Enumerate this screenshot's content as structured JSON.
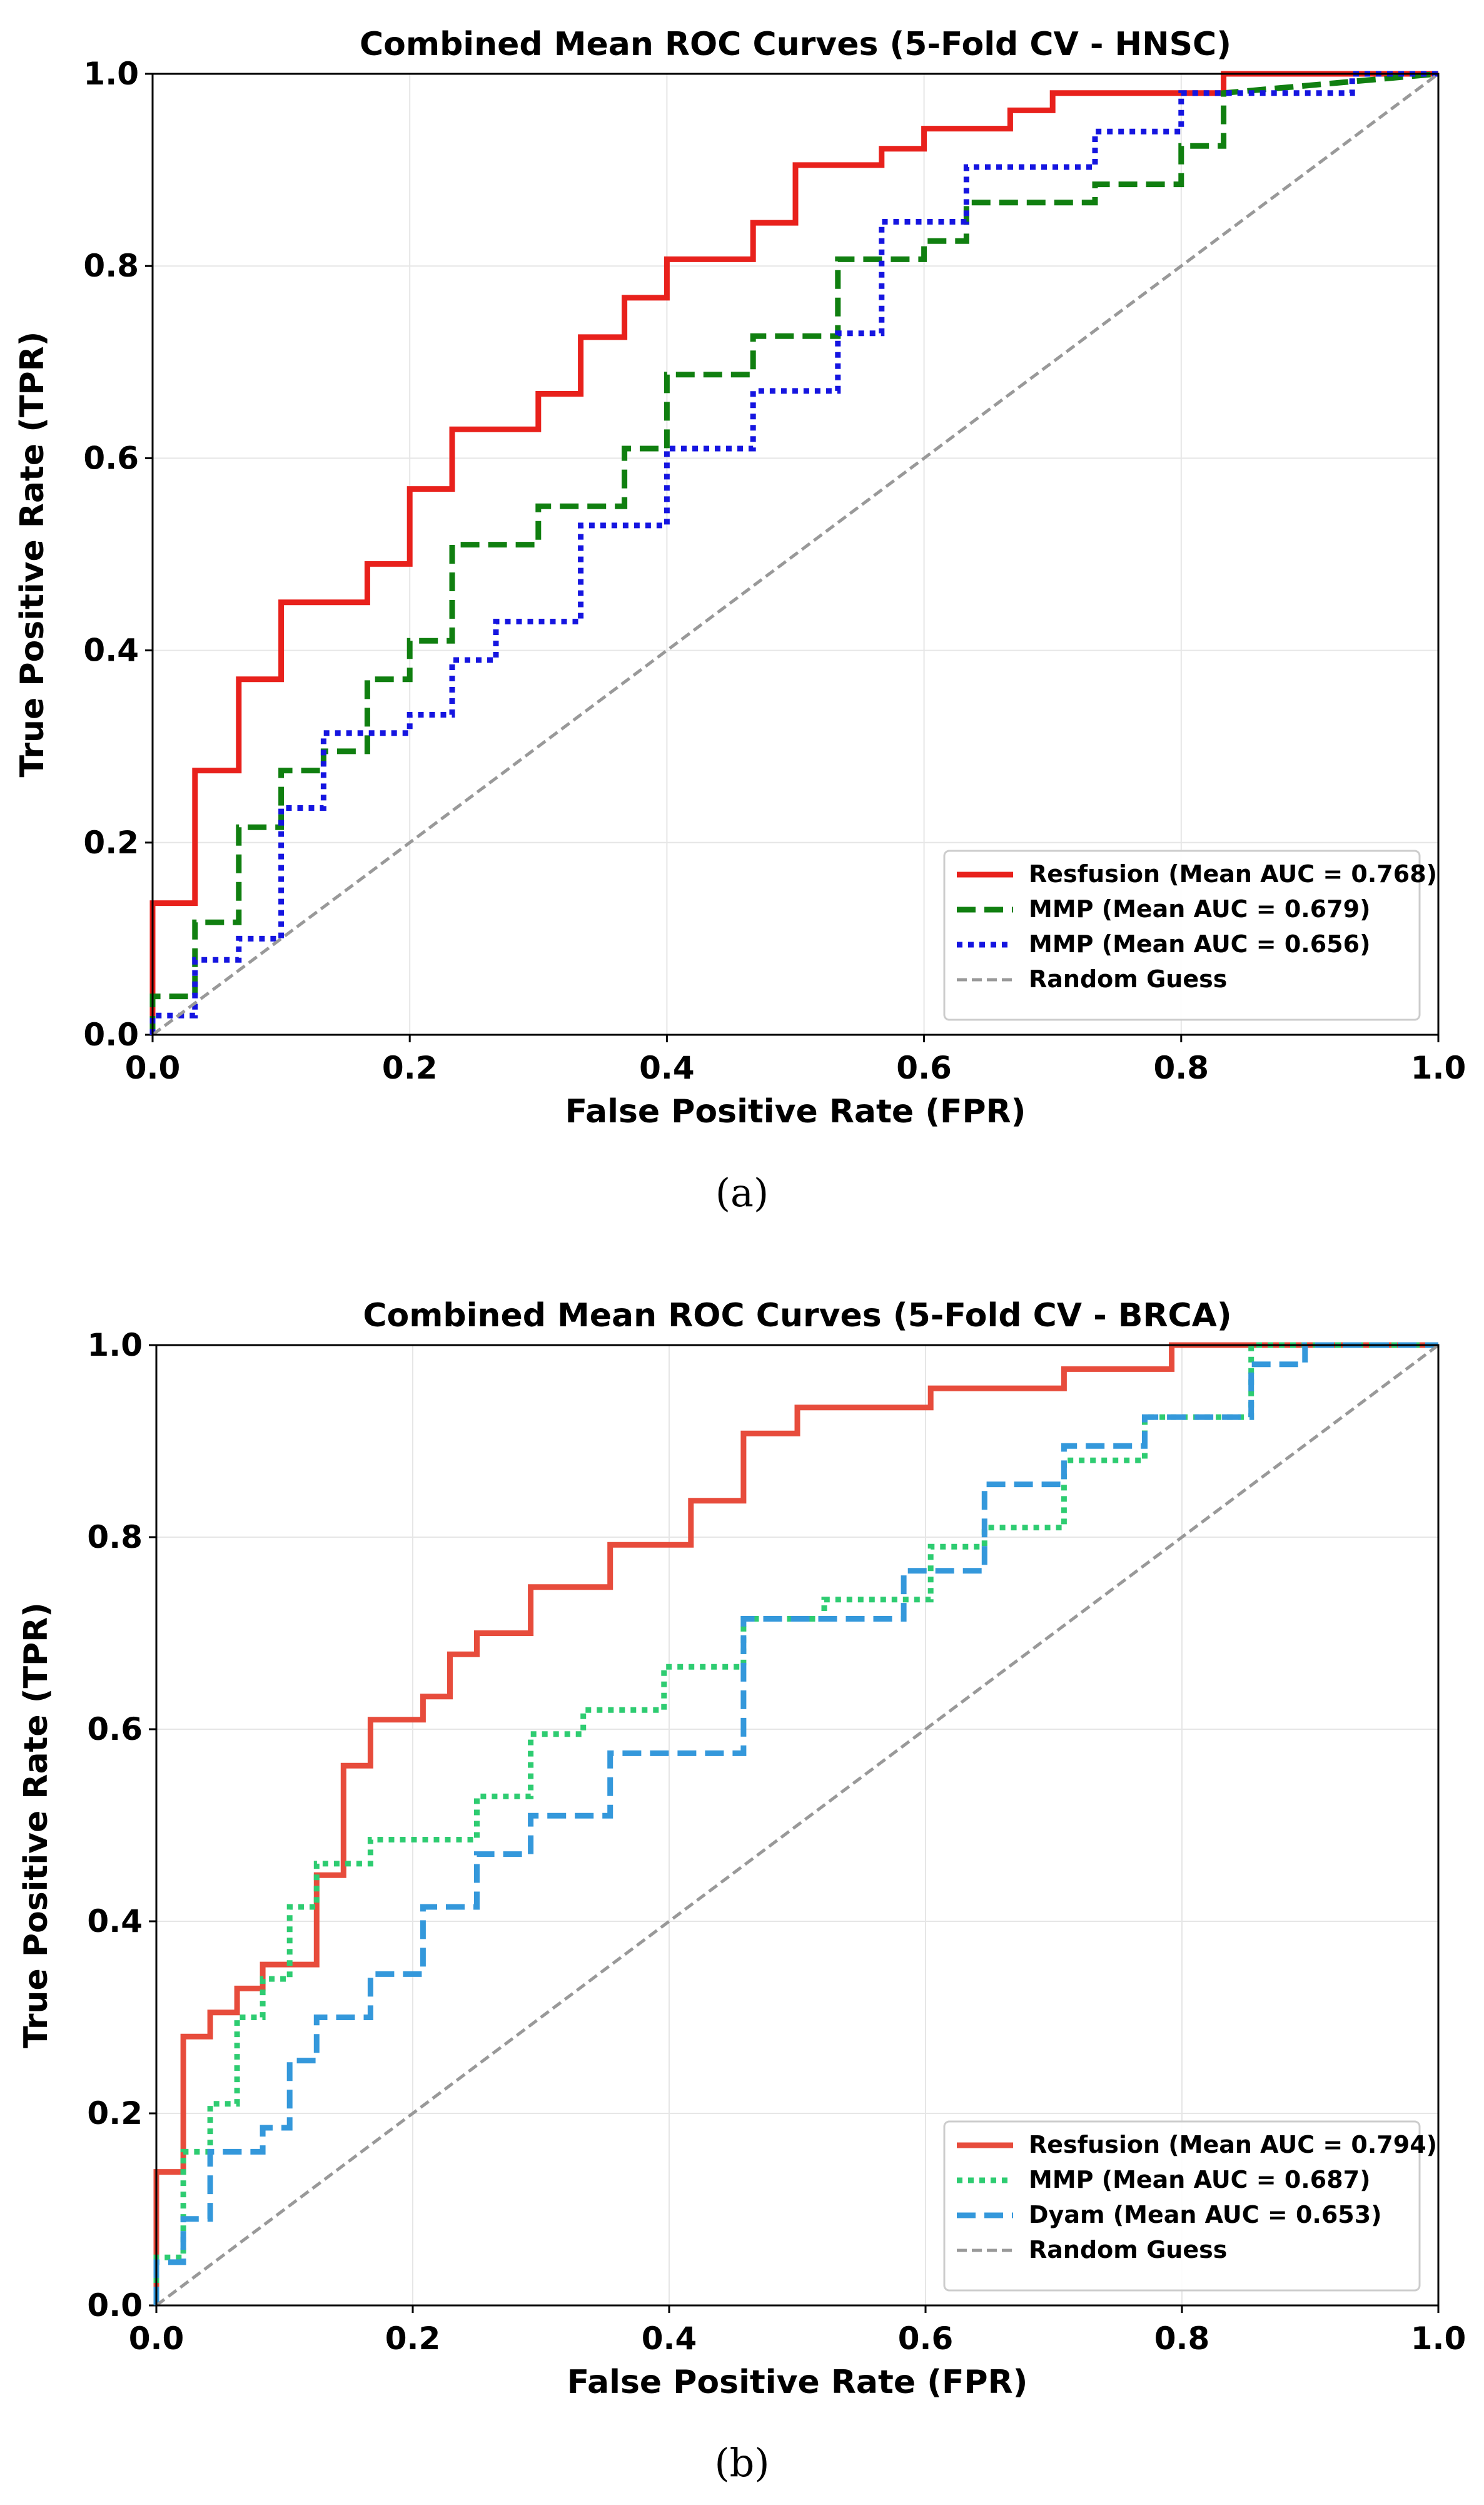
{
  "chart_data": [
    {
      "type": "line",
      "title": "Combined Mean ROC Curves (5-Fold CV - HNSC)",
      "xlabel": "False Positive Rate (FPR)",
      "ylabel": "True Positive Rate (TPR)",
      "xlim": [
        0.0,
        1.0
      ],
      "ylim": [
        0.0,
        1.0
      ],
      "xticks": [
        "0.0",
        "0.2",
        "0.4",
        "0.6",
        "0.8",
        "1.0"
      ],
      "yticks": [
        "0.0",
        "0.2",
        "0.4",
        "0.6",
        "0.8",
        "1.0"
      ],
      "grid": true,
      "legend_position": "lower-right",
      "caption": "(a)",
      "series": [
        {
          "name": "Resfusion (Mean AUC = 0.768)",
          "color": "#e8211c",
          "style": "solid",
          "x": [
            0,
            0,
            0.033,
            0.033,
            0.067,
            0.067,
            0.1,
            0.1,
            0.167,
            0.167,
            0.2,
            0.2,
            0.233,
            0.233,
            0.3,
            0.3,
            0.333,
            0.333,
            0.367,
            0.367,
            0.4,
            0.4,
            0.467,
            0.467,
            0.5,
            0.5,
            0.567,
            0.567,
            0.6,
            0.6,
            0.667,
            0.667,
            0.7,
            0.7,
            0.833,
            0.833,
            1.0
          ],
          "y": [
            0,
            0.137,
            0.137,
            0.275,
            0.275,
            0.37,
            0.37,
            0.45,
            0.45,
            0.49,
            0.49,
            0.568,
            0.568,
            0.63,
            0.63,
            0.667,
            0.667,
            0.726,
            0.726,
            0.767,
            0.767,
            0.807,
            0.807,
            0.845,
            0.845,
            0.905,
            0.905,
            0.922,
            0.922,
            0.943,
            0.943,
            0.962,
            0.962,
            0.98,
            0.98,
            1.0,
            1.0
          ]
        },
        {
          "name": "MMP (Mean AUC = 0.679)",
          "color": "#107f10",
          "style": "dashed",
          "x": [
            0,
            0,
            0.033,
            0.033,
            0.067,
            0.067,
            0.1,
            0.1,
            0.133,
            0.133,
            0.167,
            0.167,
            0.2,
            0.2,
            0.233,
            0.233,
            0.3,
            0.3,
            0.367,
            0.367,
            0.4,
            0.4,
            0.467,
            0.467,
            0.533,
            0.533,
            0.6,
            0.6,
            0.633,
            0.633,
            0.733,
            0.733,
            0.8,
            0.8,
            0.833,
            0.833,
            1.0
          ],
          "y": [
            0,
            0.04,
            0.04,
            0.117,
            0.117,
            0.216,
            0.216,
            0.275,
            0.275,
            0.295,
            0.295,
            0.37,
            0.37,
            0.41,
            0.41,
            0.51,
            0.51,
            0.55,
            0.55,
            0.61,
            0.61,
            0.687,
            0.687,
            0.727,
            0.727,
            0.807,
            0.807,
            0.826,
            0.826,
            0.866,
            0.866,
            0.885,
            0.885,
            0.925,
            0.925,
            0.98,
            1.0
          ]
        },
        {
          "name": "MMP (Mean AUC = 0.656)",
          "color": "#1515e0",
          "style": "dotted",
          "x": [
            0,
            0,
            0.033,
            0.033,
            0.067,
            0.067,
            0.1,
            0.1,
            0.133,
            0.133,
            0.2,
            0.2,
            0.233,
            0.233,
            0.267,
            0.267,
            0.333,
            0.333,
            0.4,
            0.4,
            0.467,
            0.467,
            0.533,
            0.533,
            0.567,
            0.567,
            0.633,
            0.633,
            0.733,
            0.733,
            0.8,
            0.8,
            0.933,
            0.933,
            1.0
          ],
          "y": [
            0,
            0.02,
            0.02,
            0.078,
            0.078,
            0.1,
            0.1,
            0.236,
            0.236,
            0.314,
            0.314,
            0.333,
            0.333,
            0.39,
            0.39,
            0.43,
            0.43,
            0.53,
            0.53,
            0.61,
            0.61,
            0.67,
            0.67,
            0.73,
            0.73,
            0.846,
            0.846,
            0.903,
            0.903,
            0.94,
            0.94,
            0.98,
            0.98,
            1.0,
            1.0
          ]
        },
        {
          "name": "Random Guess",
          "color": "#999999",
          "style": "dashed-thin",
          "x": [
            0,
            1
          ],
          "y": [
            0,
            1
          ]
        }
      ]
    },
    {
      "type": "line",
      "title": "Combined Mean ROC Curves (5-Fold CV - BRCA)",
      "xlabel": "False Positive Rate (FPR)",
      "ylabel": "True Positive Rate (TPR)",
      "xlim": [
        0.0,
        1.0
      ],
      "ylim": [
        0.0,
        1.0
      ],
      "xticks": [
        "0.0",
        "0.2",
        "0.4",
        "0.6",
        "0.8",
        "1.0"
      ],
      "yticks": [
        "0.0",
        "0.2",
        "0.4",
        "0.6",
        "0.8",
        "1.0"
      ],
      "grid": true,
      "legend_position": "lower-right",
      "caption": "(b)",
      "series": [
        {
          "name": "Resfusion (Mean AUC = 0.794)",
          "color": "#e74c3c",
          "style": "solid",
          "x": [
            0,
            0,
            0.021,
            0.021,
            0.042,
            0.042,
            0.063,
            0.063,
            0.083,
            0.083,
            0.125,
            0.125,
            0.146,
            0.146,
            0.167,
            0.167,
            0.208,
            0.208,
            0.229,
            0.229,
            0.25,
            0.25,
            0.292,
            0.292,
            0.354,
            0.354,
            0.417,
            0.417,
            0.458,
            0.458,
            0.5,
            0.5,
            0.604,
            0.604,
            0.708,
            0.708,
            0.792,
            0.792,
            1.0
          ],
          "y": [
            0,
            0.139,
            0.139,
            0.28,
            0.28,
            0.305,
            0.305,
            0.33,
            0.33,
            0.355,
            0.355,
            0.448,
            0.448,
            0.562,
            0.562,
            0.61,
            0.61,
            0.634,
            0.634,
            0.678,
            0.678,
            0.7,
            0.7,
            0.748,
            0.748,
            0.792,
            0.792,
            0.838,
            0.838,
            0.908,
            0.908,
            0.935,
            0.935,
            0.955,
            0.955,
            0.975,
            0.975,
            1.0,
            1.0
          ]
        },
        {
          "name": "MMP (Mean AUC = 0.687)",
          "color": "#2ecc71",
          "style": "dotted",
          "x": [
            0,
            0,
            0.021,
            0.021,
            0.042,
            0.042,
            0.063,
            0.063,
            0.083,
            0.083,
            0.104,
            0.104,
            0.125,
            0.125,
            0.167,
            0.167,
            0.25,
            0.25,
            0.292,
            0.292,
            0.333,
            0.333,
            0.396,
            0.396,
            0.458,
            0.458,
            0.521,
            0.521,
            0.604,
            0.604,
            0.646,
            0.646,
            0.708,
            0.708,
            0.771,
            0.771,
            0.854,
            0.854,
            1.0
          ],
          "y": [
            0,
            0.05,
            0.05,
            0.16,
            0.16,
            0.21,
            0.21,
            0.3,
            0.3,
            0.34,
            0.34,
            0.415,
            0.415,
            0.46,
            0.46,
            0.485,
            0.485,
            0.53,
            0.53,
            0.595,
            0.595,
            0.62,
            0.62,
            0.665,
            0.665,
            0.715,
            0.715,
            0.735,
            0.735,
            0.79,
            0.79,
            0.81,
            0.81,
            0.88,
            0.88,
            0.925,
            0.925,
            1.0,
            1.0
          ]
        },
        {
          "name": "Dyam (Mean AUC = 0.653)",
          "color": "#3498db",
          "style": "dashed",
          "x": [
            0,
            0,
            0.021,
            0.021,
            0.042,
            0.042,
            0.083,
            0.083,
            0.104,
            0.104,
            0.125,
            0.125,
            0.167,
            0.167,
            0.208,
            0.208,
            0.25,
            0.25,
            0.292,
            0.292,
            0.354,
            0.354,
            0.458,
            0.458,
            0.521,
            0.521,
            0.583,
            0.583,
            0.646,
            0.646,
            0.708,
            0.708,
            0.771,
            0.771,
            0.854,
            0.854,
            0.896,
            0.896,
            1.0
          ],
          "y": [
            0,
            0.045,
            0.045,
            0.09,
            0.09,
            0.16,
            0.16,
            0.185,
            0.185,
            0.255,
            0.255,
            0.3,
            0.3,
            0.345,
            0.345,
            0.415,
            0.415,
            0.47,
            0.47,
            0.51,
            0.51,
            0.575,
            0.575,
            0.715,
            0.715,
            0.715,
            0.715,
            0.765,
            0.765,
            0.855,
            0.855,
            0.895,
            0.895,
            0.925,
            0.925,
            0.98,
            0.98,
            1.0,
            1.0
          ]
        },
        {
          "name": "Random Guess",
          "color": "#999999",
          "style": "dashed-thin",
          "x": [
            0,
            1
          ],
          "y": [
            0,
            1
          ]
        }
      ]
    }
  ]
}
